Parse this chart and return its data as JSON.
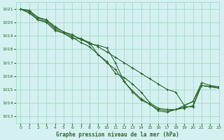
{
  "title": "Graphe pression niveau de la mer (hPa)",
  "background_color": "#d4f0f0",
  "grid_color": "#aaddcc",
  "line_color": "#2d6a2d",
  "xlim": [
    -0.5,
    23
  ],
  "ylim": [
    1012.5,
    1021.5
  ],
  "yticks": [
    1013,
    1014,
    1015,
    1016,
    1017,
    1018,
    1019,
    1020,
    1021
  ],
  "xticks": [
    0,
    1,
    2,
    3,
    4,
    5,
    6,
    7,
    8,
    9,
    10,
    11,
    12,
    13,
    14,
    15,
    16,
    17,
    18,
    19,
    20,
    21,
    22,
    23
  ],
  "series": [
    [
      1021.0,
      1020.8,
      1020.2,
      1020.1,
      1019.5,
      1019.2,
      1018.9,
      1018.5,
      1018.2,
      1017.6,
      1017.0,
      1016.5,
      1015.6,
      1014.9,
      1014.3,
      1013.9,
      1013.5,
      1013.4,
      1013.5,
      1013.8,
      1014.1,
      1015.3,
      1015.2,
      1015.2
    ],
    [
      1021.0,
      1020.7,
      1020.2,
      1020.0,
      1019.4,
      1019.2,
      1018.8,
      1018.8,
      1018.4,
      1018.3,
      1018.1,
      1017.0,
      1015.6,
      1014.8,
      1014.2,
      1013.9,
      1013.4,
      1013.3,
      1013.5,
      1013.7,
      1013.7,
      1015.3,
      1015.2,
      1015.1
    ],
    [
      1021.0,
      1020.9,
      1020.3,
      1020.2,
      1019.6,
      1019.3,
      1019.1,
      1018.7,
      1018.5,
      1017.6,
      1017.1,
      1016.2,
      1015.9,
      1015.4,
      1014.8,
      1014.0,
      1013.6,
      1013.5,
      1013.5,
      1013.6,
      1013.8,
      1015.3,
      1015.2,
      1015.1
    ],
    [
      1021.0,
      1020.9,
      1020.4,
      1020.2,
      1019.7,
      1019.3,
      1019.0,
      1018.8,
      1018.5,
      1018.2,
      1017.8,
      1017.4,
      1017.0,
      1016.6,
      1016.2,
      1015.8,
      1015.4,
      1015.0,
      1014.8,
      1013.8,
      1014.1,
      1015.5,
      1015.3,
      1015.2
    ]
  ]
}
